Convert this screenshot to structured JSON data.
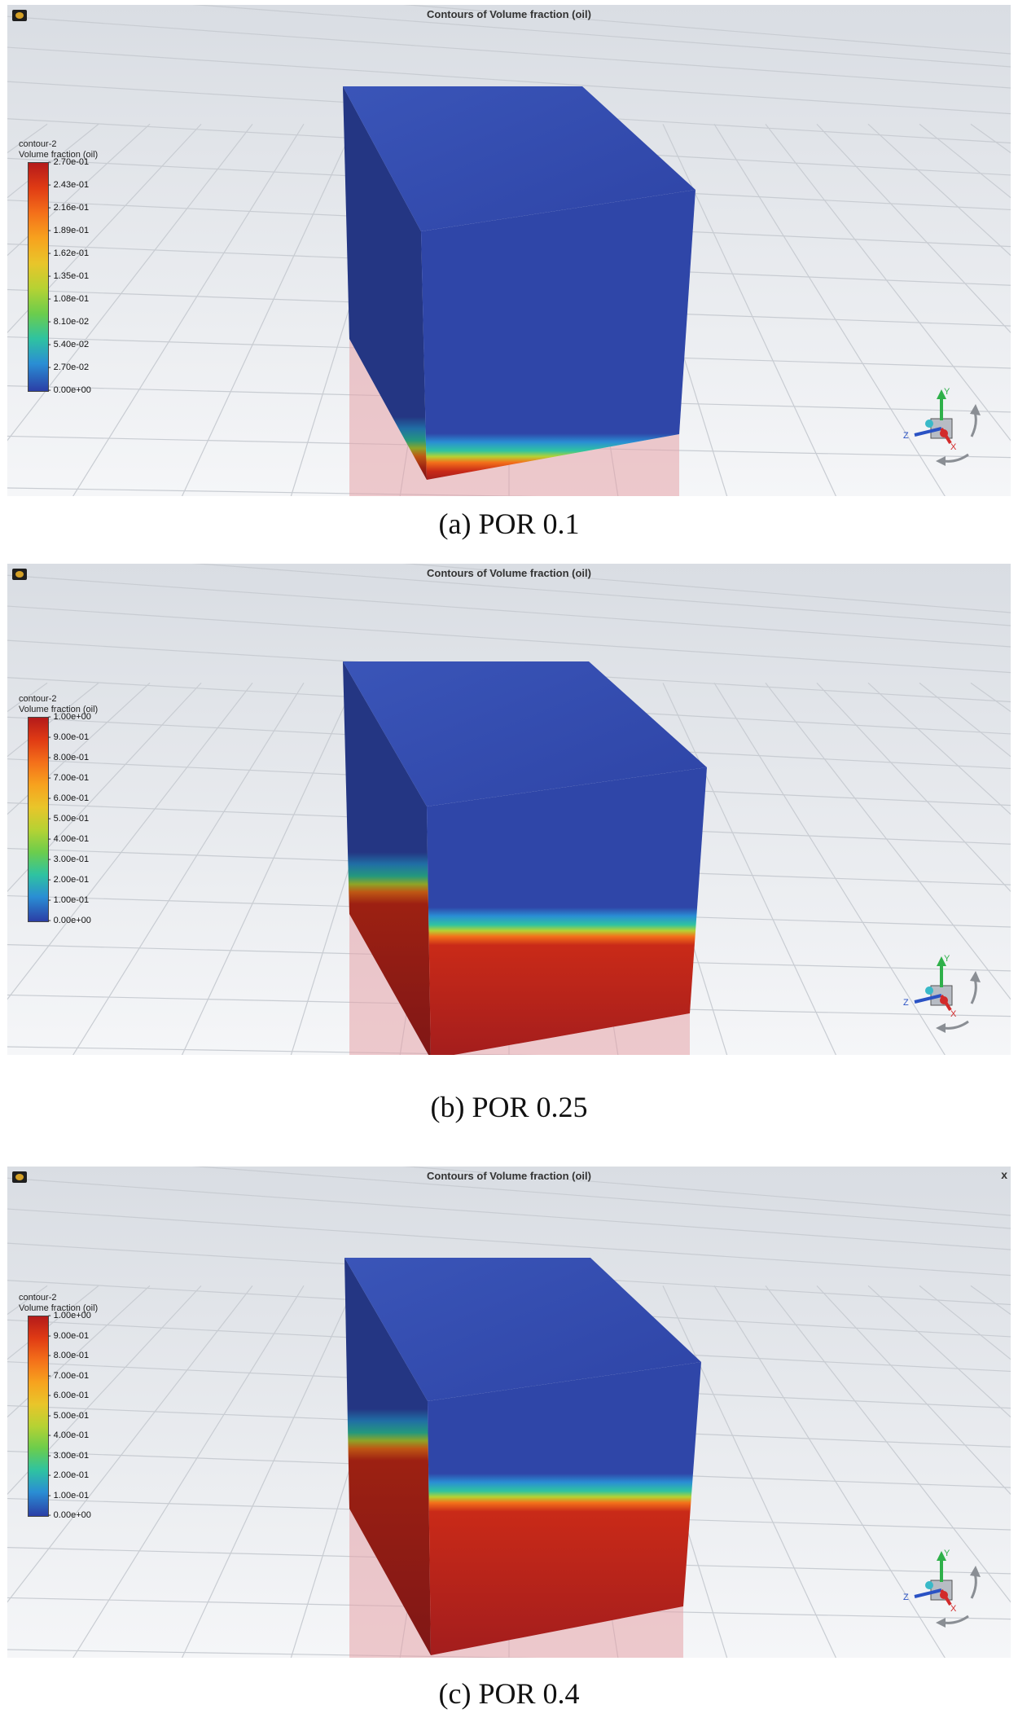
{
  "panels": [
    {
      "title": "Contours of Volume fraction (oil)",
      "legend_name": "contour-2",
      "legend_var": "Volume fraction (oil)",
      "ticks": [
        "2.70e-01",
        "2.43e-01",
        "2.16e-01",
        "1.89e-01",
        "1.62e-01",
        "1.35e-01",
        "1.08e-01",
        "8.10e-02",
        "5.40e-02",
        "2.70e-02",
        "0.00e+00"
      ],
      "caption": "(a) POR 0.1",
      "oil_front_fraction": 0.06,
      "show_close": false
    },
    {
      "title": "Contours of Volume fraction (oil)",
      "legend_name": "contour-2",
      "legend_var": "Volume fraction (oil)",
      "ticks": [
        "1.00e+00",
        "9.00e-01",
        "8.00e-01",
        "7.00e-01",
        "6.00e-01",
        "5.00e-01",
        "4.00e-01",
        "3.00e-01",
        "2.00e-01",
        "1.00e-01",
        "0.00e+00"
      ],
      "caption": "(b) POR 0.25",
      "oil_front_fraction": 0.42,
      "show_close": false
    },
    {
      "title": "Contours of Volume fraction (oil)",
      "legend_name": "contour-2",
      "legend_var": "Volume fraction (oil)",
      "ticks": [
        "1.00e+00",
        "9.00e-01",
        "8.00e-01",
        "7.00e-01",
        "6.00e-01",
        "5.00e-01",
        "4.00e-01",
        "3.00e-01",
        "2.00e-01",
        "1.00e-01",
        "0.00e+00"
      ],
      "caption": "(c) POR 0.4",
      "oil_front_fraction": 0.52,
      "show_close": true
    }
  ],
  "close_label": "x",
  "axes": {
    "y": "Y",
    "x": "X",
    "z": "Z"
  },
  "colors": {
    "blue": "#2f46a8",
    "red": "#a31d1d",
    "background": "#eceff3",
    "grid": "#c8ccd2"
  }
}
